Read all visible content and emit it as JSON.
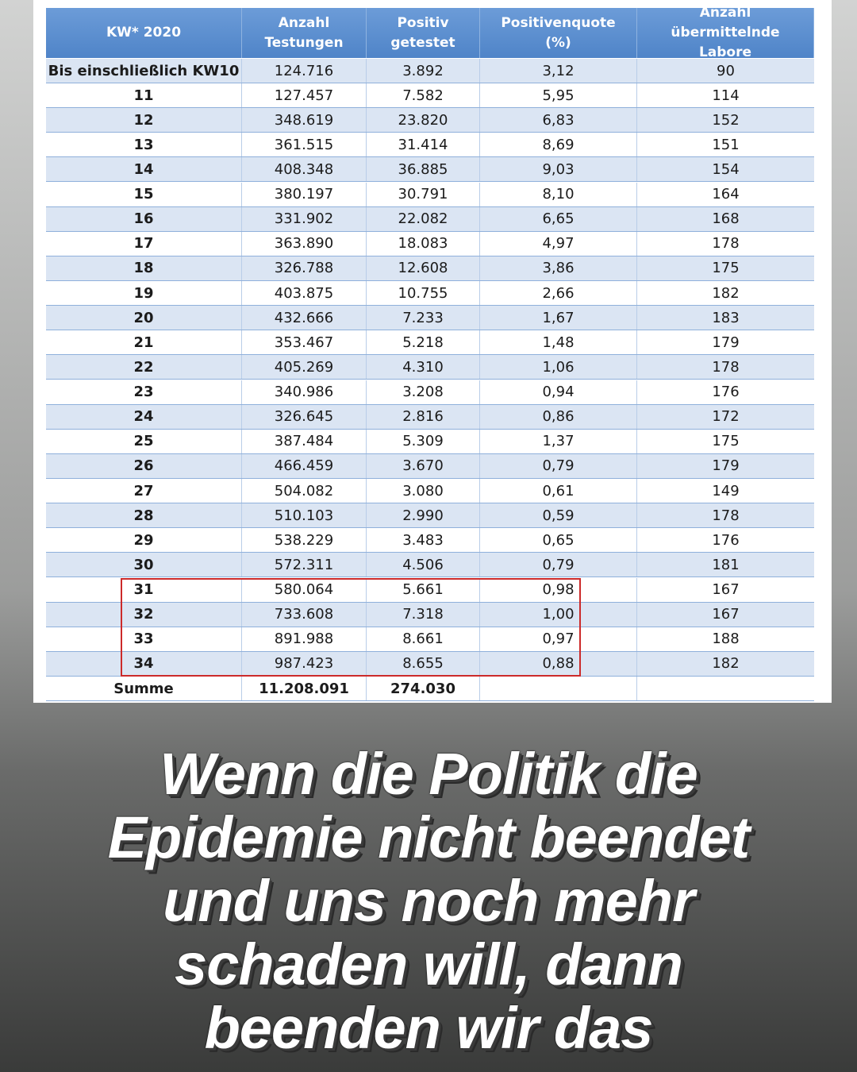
{
  "table": {
    "headers": [
      "KW* 2020",
      "Anzahl Testungen",
      "Positiv getestet",
      "Positivenquote (%)",
      "Anzahl übermittelnde Labore"
    ],
    "rows": [
      [
        "Bis einschließlich KW10",
        "124.716",
        "3.892",
        "3,12",
        "90"
      ],
      [
        "11",
        "127.457",
        "7.582",
        "5,95",
        "114"
      ],
      [
        "12",
        "348.619",
        "23.820",
        "6,83",
        "152"
      ],
      [
        "13",
        "361.515",
        "31.414",
        "8,69",
        "151"
      ],
      [
        "14",
        "408.348",
        "36.885",
        "9,03",
        "154"
      ],
      [
        "15",
        "380.197",
        "30.791",
        "8,10",
        "164"
      ],
      [
        "16",
        "331.902",
        "22.082",
        "6,65",
        "168"
      ],
      [
        "17",
        "363.890",
        "18.083",
        "4,97",
        "178"
      ],
      [
        "18",
        "326.788",
        "12.608",
        "3,86",
        "175"
      ],
      [
        "19",
        "403.875",
        "10.755",
        "2,66",
        "182"
      ],
      [
        "20",
        "432.666",
        "7.233",
        "1,67",
        "183"
      ],
      [
        "21",
        "353.467",
        "5.218",
        "1,48",
        "179"
      ],
      [
        "22",
        "405.269",
        "4.310",
        "1,06",
        "178"
      ],
      [
        "23",
        "340.986",
        "3.208",
        "0,94",
        "176"
      ],
      [
        "24",
        "326.645",
        "2.816",
        "0,86",
        "172"
      ],
      [
        "25",
        "387.484",
        "5.309",
        "1,37",
        "175"
      ],
      [
        "26",
        "466.459",
        "3.670",
        "0,79",
        "179"
      ],
      [
        "27",
        "504.082",
        "3.080",
        "0,61",
        "149"
      ],
      [
        "28",
        "510.103",
        "2.990",
        "0,59",
        "178"
      ],
      [
        "29",
        "538.229",
        "3.483",
        "0,65",
        "176"
      ],
      [
        "30",
        "572.311",
        "4.506",
        "0,79",
        "181"
      ],
      [
        "31",
        "580.064",
        "5.661",
        "0,98",
        "167"
      ],
      [
        "32",
        "733.608",
        "7.318",
        "1,00",
        "167"
      ],
      [
        "33",
        "891.988",
        "8.661",
        "0,97",
        "188"
      ],
      [
        "34",
        "987.423",
        "8.655",
        "0,88",
        "182"
      ]
    ],
    "total": [
      "Summe",
      "11.208.091",
      "274.030"
    ]
  },
  "caption": [
    "Wenn die Politik die",
    "Epidemie nicht beendet",
    "und uns noch mehr",
    "schaden will, dann",
    "beenden wir das"
  ]
}
